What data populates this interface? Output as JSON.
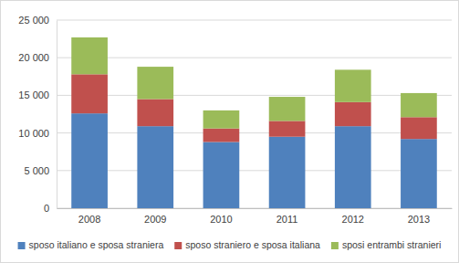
{
  "chart_data": {
    "type": "bar",
    "stacked": true,
    "grid": true,
    "legend": "bottom",
    "categories": [
      "2008",
      "2009",
      "2010",
      "2011",
      "2012",
      "2013"
    ],
    "series": [
      {
        "name": "sposo italiano e sposa straniera",
        "color": "#4f81bd",
        "values": [
          12600,
          10900,
          8800,
          9500,
          10900,
          9200
        ]
      },
      {
        "name": "sposo straniero e sposa italiana",
        "color": "#c0504d",
        "values": [
          5200,
          3600,
          1800,
          2100,
          3200,
          2900
        ]
      },
      {
        "name": "sposi entrambi stranieri",
        "color": "#9bbb59",
        "values": [
          4900,
          4300,
          2400,
          3200,
          4300,
          3200
        ]
      }
    ],
    "ylim": [
      0,
      25000
    ],
    "yticks": [
      0,
      {
        "value": 5000,
        "label": "5 000"
      },
      {
        "value": 10000,
        "label": "10 000"
      },
      {
        "value": 15000,
        "label": "15 000"
      },
      {
        "value": 20000,
        "label": "20 000"
      },
      {
        "value": 25000,
        "label": "25 000"
      }
    ]
  }
}
